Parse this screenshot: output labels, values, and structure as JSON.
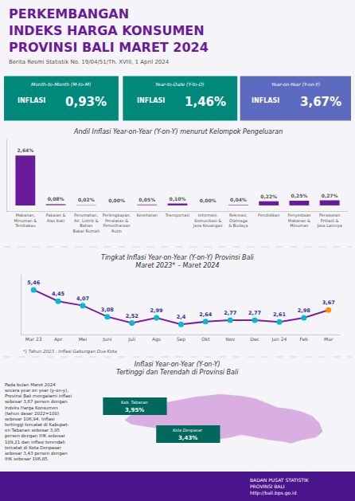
{
  "title": "PERKEMBANGAN\nINDEKS HARGA KONSUMEN\nPROVINSI BALI MARET 2024",
  "subtitle": "Berita Resmi Statistik No. 19/04/51/Th. XVIII, 1 April 2024",
  "annotations": [
    {
      "text": "Month-to-Month (M-to-M)",
      "color": "#00897b"
    },
    {
      "text": "INFLASI"
    },
    {
      "text": "0,93%"
    },
    {
      "text": "Year-to-Date (Y-to-D)",
      "color": "#00897b"
    },
    {
      "text": "INFLASI"
    },
    {
      "text": "1,46%"
    },
    {
      "text": "Year-on-Year (Y-on-Y)",
      "color": "#5c6bc0"
    },
    {
      "text": "INFLASI"
    },
    {
      "text": "3,67%"
    },
    {
      "text": "Inflasi Year-on-Year (Y-on-Y)\nTertinggi dan Terendah di Provinsi Bali"
    },
    {
      "text": "Pada bulan Maret 2024\nsecara year on year (y-on-y),\nProvinsi Bali mengalami inflasi\nsebesar 3,67 persen dengan\nIndeks Harga Konsumen\n(tahun dasar 2022=100)\nsebesar 106,94. Inflasi\ntertinggi tercatat di Kabupat-\nen Tabanan sebesar 3,95\npersen dengan IHK sebesar\n109,21 dan inflasi terendah\ntercatat di Kota Denpasar\nsebesar 3,43 persen dengan\nIHK sebesar 106,85."
    },
    {
      "text": "Kab. Tabanan",
      "color": "#00695c"
    },
    {
      "text": "3,95%"
    },
    {
      "text": "Kota Denpasar",
      "color": "#00695c"
    },
    {
      "text": "3,43%"
    },
    {
      "text": "BADAN PUSAT STATISTIK\nPROVINSI BALI\nhttp://bali.bps.go.id",
      "color": "#4a148c"
    }
  ],
  "chart_data": [
    {
      "type": "bar",
      "title": "Andil Inflasi Year-on-Year (Y-on-Y) menurut Kelompok Pengeluaran",
      "categories": [
        "Makanan,\nMinuman &\nTembakau",
        "Pakaian &\nAlas Kaki",
        "Perumahan,\nAir, Listrik &\nBahan\nBakar Rumah",
        "Perlengkapan,\nPeralatan &\nPemeliharaan\nRutin",
        "Kesehatan",
        "Transportasi",
        "Informasi,\nKomunikasi &\nJasa Keuangan",
        "Rekreasi,\nOlahraga\n& Budaya",
        "Pendidikan",
        "Penyediaan\nMakanan &\nMinuman",
        "Perawatan\nPribadi &\nJasa Lainnya"
      ],
      "values": [
        2.64,
        0.08,
        0.02,
        0.0,
        0.05,
        0.1,
        0.0,
        0.04,
        0.22,
        0.25,
        0.27
      ],
      "value_labels": [
        "2,64%",
        "0,08%",
        "0,02%",
        "0,00%",
        "0,05%",
        "0,10%",
        "0,00%",
        "0,04%",
        "0,22%",
        "0,25%",
        "0,27%"
      ],
      "colors": [
        "#6a1b9a",
        "#9c6fa8",
        "#9c6fa8",
        "#9c6fa8",
        "#9c6fa8",
        "#6a1b9a",
        "#9c6fa8",
        "#9c6fa8",
        "#6a1b9a",
        "#6a1b9a",
        "#6a1b9a"
      ],
      "data_labels": true,
      "ylim": [
        -0.3,
        3.5
      ],
      "grid": false,
      "tick_labels": "x"
    },
    {
      "type": "line",
      "title": "Tingkat Inflasi Year-on-Year (Y-on-Y) Provinsi Bali\nMaret 2023* – Maret 2024",
      "categories": [
        "Mar 23",
        "Apr",
        "Mei",
        "Juni",
        "Juli",
        "Ags",
        "Sep",
        "Okt",
        "Nov",
        "Dec",
        "Jan 24",
        "Feb",
        "Mar"
      ],
      "values": [
        5.46,
        4.45,
        4.07,
        3.08,
        2.52,
        2.99,
        2.4,
        2.64,
        2.77,
        2.77,
        2.61,
        2.98,
        3.67
      ],
      "value_labels": [
        "5,46",
        "4,45",
        "4,07",
        "3,08",
        "2,52",
        "2,99",
        "2,4",
        "2,64",
        "2,77",
        "2,77",
        "2,61",
        "2,98",
        "3,67"
      ],
      "color": "#7b1fa2",
      "colors": [
        "#00bcd4",
        "#00bcd4",
        "#00bcd4",
        "#00bcd4",
        "#00bcd4",
        "#00bcd4",
        "#00bcd4",
        "#00bcd4",
        "#00bcd4",
        "#00bcd4",
        "#00bcd4",
        "#00bcd4",
        "#ff8f00"
      ],
      "marker": "circle",
      "data_labels": true,
      "ylim": [
        1.5,
        6.8
      ],
      "grid": false,
      "tick_labels": "x",
      "annotations": [
        {
          "text": "*) Tahun 2023 : Inflasi Gabungan Dua Kota"
        }
      ]
    }
  ]
}
